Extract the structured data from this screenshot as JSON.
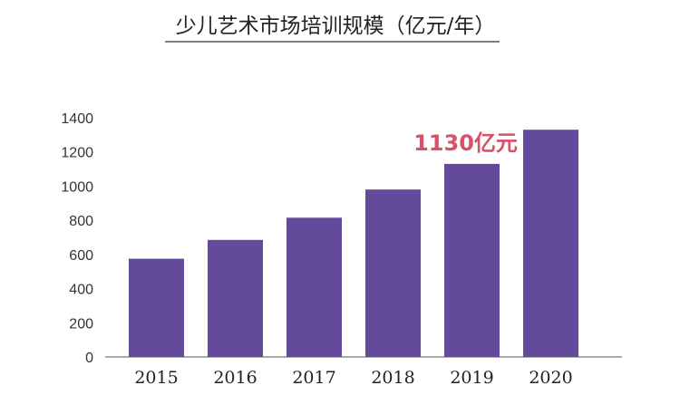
{
  "colors": {
    "bar": "#644a9a",
    "annotation": "#d8506a",
    "axis": "#555555",
    "title_underline": "#333333"
  },
  "chart_data": {
    "type": "bar",
    "title": "少儿艺术市场培训规模（亿元/年）",
    "xlabel": "",
    "ylabel": "",
    "categories": [
      "2015",
      "2016",
      "2017",
      "2018",
      "2019",
      "2020"
    ],
    "values": [
      575,
      685,
      815,
      980,
      1130,
      1330
    ],
    "ylim": [
      0,
      1400
    ],
    "yticks": [
      "0",
      "200",
      "400",
      "600",
      "800",
      "1000",
      "1200",
      "1400"
    ],
    "grid": false,
    "annotation": {
      "text": "1130亿元",
      "category": "2019"
    }
  }
}
